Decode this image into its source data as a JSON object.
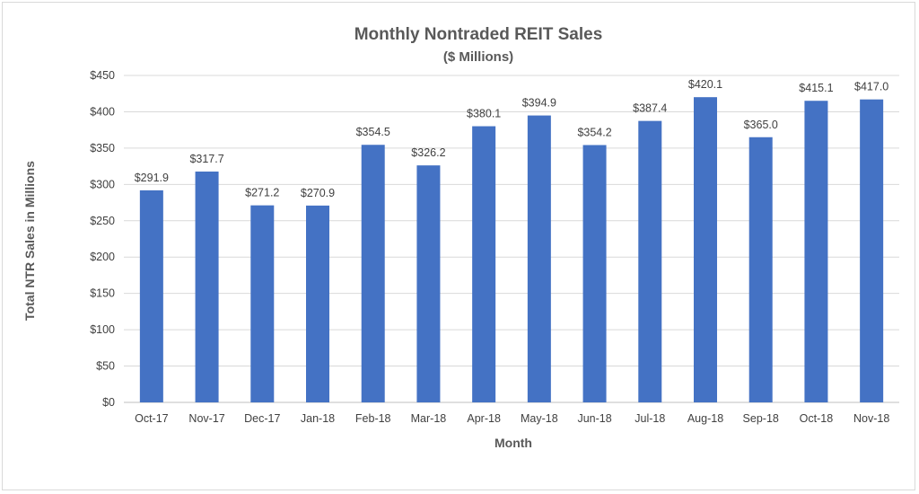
{
  "chart_data": {
    "type": "bar",
    "title": "Monthly Nontraded REIT Sales",
    "subtitle": "($ Millions)",
    "xlabel": "Month",
    "ylabel": "Total NTR Sales in Millions",
    "categories": [
      "Oct-17",
      "Nov-17",
      "Dec-17",
      "Jan-18",
      "Feb-18",
      "Mar-18",
      "Apr-18",
      "May-18",
      "Jun-18",
      "Jul-18",
      "Aug-18",
      "Sep-18",
      "Oct-18",
      "Nov-18"
    ],
    "values": [
      291.9,
      317.7,
      271.2,
      270.9,
      354.5,
      326.2,
      380.1,
      394.9,
      354.2,
      387.4,
      420.1,
      365.0,
      415.1,
      417.0
    ],
    "data_labels": [
      "$291.9",
      "$317.7",
      "$271.2",
      "$270.9",
      "$354.5",
      "$326.2",
      "$380.1",
      "$394.9",
      "$354.2",
      "$387.4",
      "$420.1",
      "$365.0",
      "$415.1",
      "$417.0"
    ],
    "ylim": [
      0,
      450
    ],
    "yticks": [
      0,
      50,
      100,
      150,
      200,
      250,
      300,
      350,
      400,
      450
    ],
    "ytick_labels": [
      "$0",
      "$50",
      "$100",
      "$150",
      "$200",
      "$250",
      "$300",
      "$350",
      "$400",
      "$450"
    ],
    "grid": true,
    "legend": "none",
    "bar_color": "#4472c4"
  }
}
